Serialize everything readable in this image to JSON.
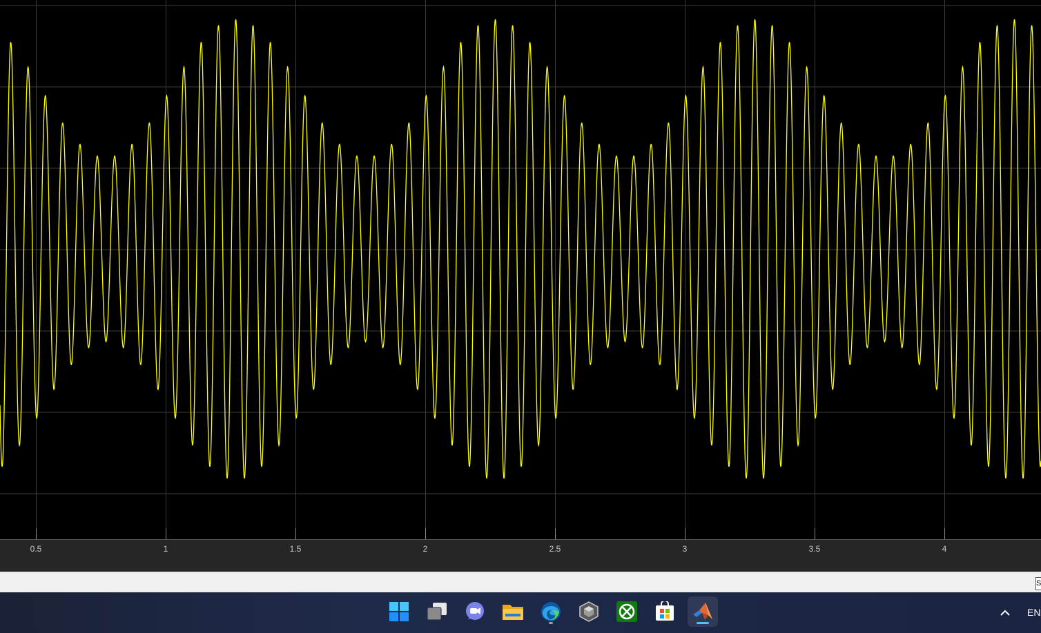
{
  "scope": {
    "background": "#000000",
    "grid_color": "#3c3c3c",
    "trace_color": "#ffff00",
    "x_ticks": [
      "0.5",
      "1",
      "1.5",
      "2",
      "2.5",
      "3",
      "3.5",
      "4"
    ]
  },
  "chart_data": {
    "type": "line",
    "title": "",
    "xlabel": "",
    "ylabel": "",
    "xlim": [
      0.36,
      4.38
    ],
    "x_ticks": [
      0.5,
      1,
      1.5,
      2,
      2.5,
      3,
      3.5,
      4
    ],
    "grid": true,
    "series": [
      {
        "description_of_signal": "amplitude-modulated sinusoid",
        "carrier_cycles_per_unit": 15,
        "envelope_period": 1.0,
        "envelope_peak_x": [
          1.27,
          2.27,
          3.27,
          4.27
        ],
        "envelope_min_x": [
          0.77,
          1.77,
          2.77,
          3.77
        ],
        "min_amplitude_ratio": 0.4
      }
    ]
  },
  "status_bar": {
    "field_text": "S"
  },
  "taskbar": {
    "icons": [
      {
        "name": "start-icon",
        "color": "#4cc2ff"
      },
      {
        "name": "task-view-icon",
        "color": "#cfcfcf"
      },
      {
        "name": "chat-icon",
        "color": "#7b83eb"
      },
      {
        "name": "file-explorer-icon",
        "color": "#f7c84a"
      },
      {
        "name": "edge-icon",
        "color": "#2fa4e7"
      },
      {
        "name": "app-cube-icon",
        "color": "#b8b8b8"
      },
      {
        "name": "xbox-icon",
        "color": "#107c10"
      },
      {
        "name": "store-icon",
        "color": "#ffffff"
      },
      {
        "name": "matlab-icon",
        "color": "#e16737"
      }
    ],
    "tray_language": "EN"
  }
}
